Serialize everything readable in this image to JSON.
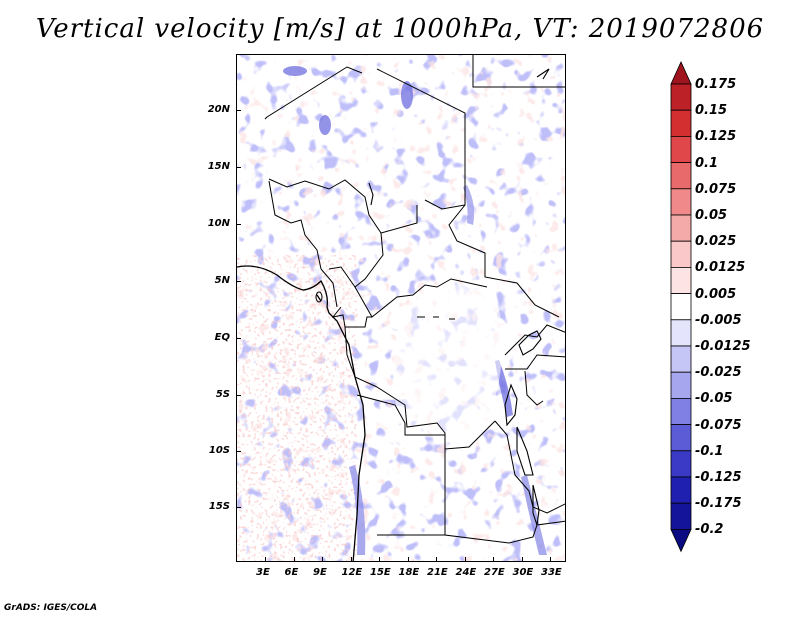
{
  "title": "Vertical velocity [m/s] at 1000hPa, VT: 2019072806",
  "credit": "GrADS: IGES/COLA",
  "map": {
    "lat_labels": [
      "20N",
      "15N",
      "10N",
      "5N",
      "EQ",
      "5S",
      "10S",
      "15S"
    ],
    "lon_labels": [
      "3E",
      "6E",
      "9E",
      "12E",
      "15E",
      "18E",
      "21E",
      "24E",
      "27E",
      "30E",
      "33E"
    ]
  },
  "colorbar": {
    "labels": [
      "0.175",
      "0.15",
      "0.125",
      "0.1",
      "0.075",
      "0.05",
      "0.025",
      "0.0125",
      "0.005",
      "-0.005",
      "-0.0125",
      "-0.025",
      "-0.05",
      "-0.075",
      "-0.1",
      "-0.125",
      "-0.175",
      "-0.2"
    ],
    "colors": [
      "#a0141e",
      "#bb2126",
      "#d32f30",
      "#e0474a",
      "#e86a6b",
      "#f08a8a",
      "#f5aaaa",
      "#fac8c8",
      "#fde3e3",
      "#ffffff",
      "#e4e4fc",
      "#c6c6f6",
      "#a6a6ee",
      "#8080e4",
      "#5c5cd6",
      "#3a3ac6",
      "#2020b0",
      "#14149a",
      "#0a0a82"
    ]
  }
}
